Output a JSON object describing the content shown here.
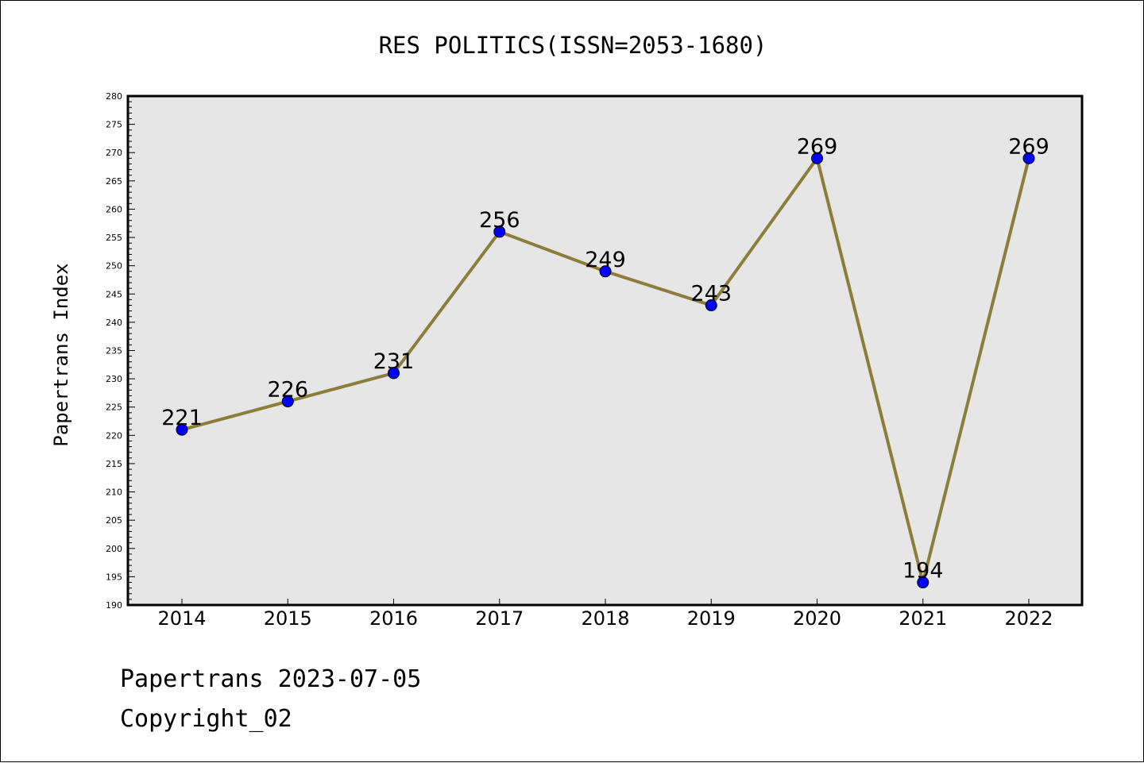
{
  "chart_data": {
    "type": "line",
    "title": "RES POLITICS(ISSN=2053-1680)",
    "xlabel": "",
    "ylabel": "Papertrans Index",
    "categories": [
      "2014",
      "2015",
      "2016",
      "2017",
      "2018",
      "2019",
      "2020",
      "2021",
      "2022"
    ],
    "series": [
      {
        "values": [
          221,
          226,
          231,
          256,
          249,
          243,
          269,
          194,
          269
        ],
        "line_color": "#8b7d3a",
        "marker_color": "#0000ff"
      }
    ],
    "ylim": [
      190,
      280
    ],
    "ytick_step": 5,
    "grid": false,
    "legend": "none",
    "plot_background": "#e6e6e6"
  },
  "footer": {
    "line1": "Papertrans 2023-07-05",
    "line2": "Copyright_02"
  }
}
